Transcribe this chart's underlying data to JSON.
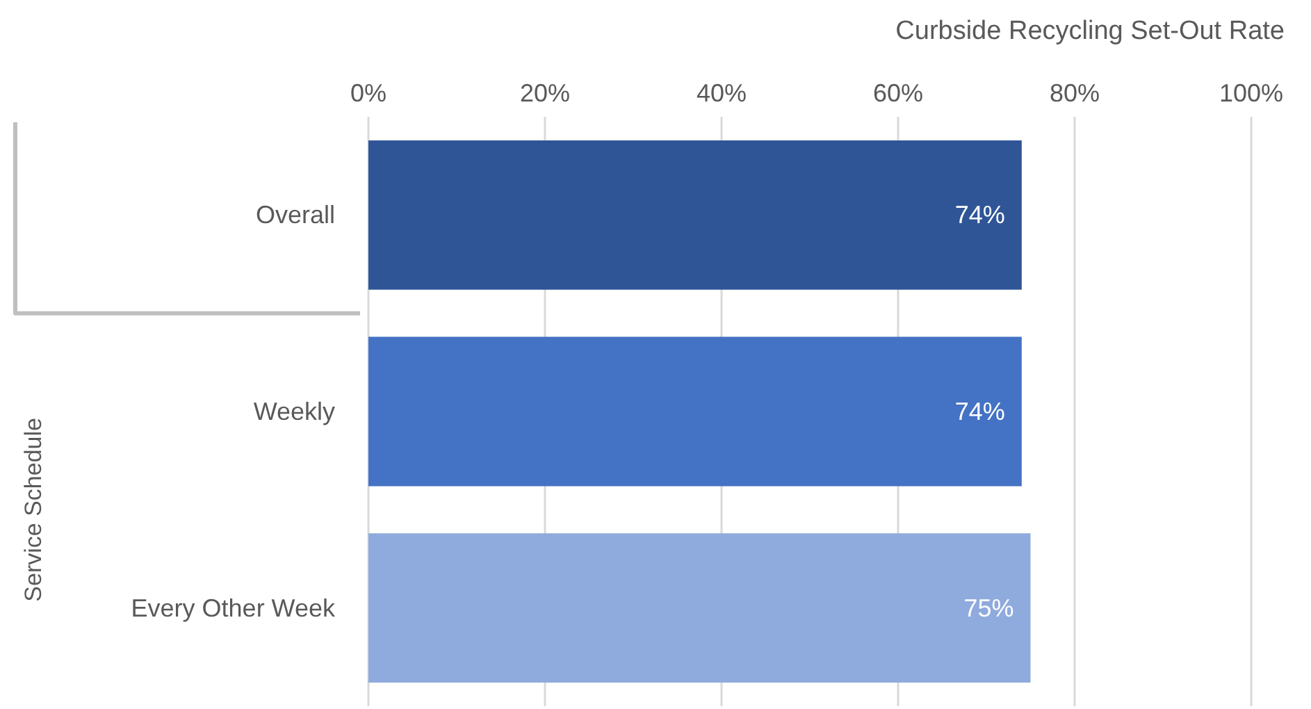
{
  "chart_data": {
    "type": "bar",
    "orientation": "horizontal",
    "xlabel": "Curbside Recycling Set-Out Rate",
    "ylabel": "Service Schedule",
    "categories": [
      "Overall",
      "Weekly",
      "Every Other Week"
    ],
    "values": [
      74,
      74,
      75
    ],
    "colors": [
      "#2f5597",
      "#4472c4",
      "#8faadc"
    ],
    "value_labels": [
      "74%",
      "74%",
      "75%"
    ],
    "xlim": [
      0,
      100
    ],
    "xticks": [
      {
        "value": 0,
        "label": "0%"
      },
      {
        "value": 20,
        "label": "20%"
      },
      {
        "value": 40,
        "label": "40%"
      },
      {
        "value": 60,
        "label": "60%"
      },
      {
        "value": 80,
        "label": "80%"
      },
      {
        "value": 100,
        "label": "100%"
      }
    ],
    "grid": "x"
  }
}
